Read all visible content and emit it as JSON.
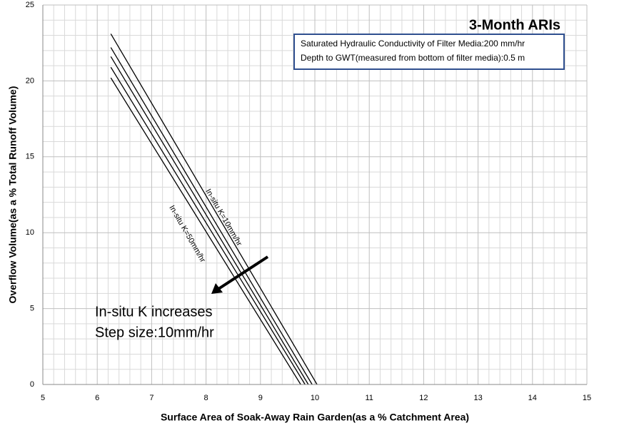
{
  "chart_data": {
    "type": "line",
    "title": "3-Month ARIs",
    "x_label": "Surface Area of Soak-Away Rain Garden(as a %  Catchment Area)",
    "y_label": "Overflow Volume(as a % Total Runoff Volume)",
    "info_box": [
      "Saturated Hydraulic Conductivity of Filter Media:200 mm/hr",
      "Depth to GWT(measured from bottom of filter media):0.5 m"
    ],
    "annotations": [
      "In-situ K=10mm/hr",
      "In-situ K=50mm/hr",
      "In-situ K increases",
      "Step size:10mm/hr"
    ],
    "color": "#000000",
    "series": [
      {
        "x": [
          6.25,
          10.04
        ],
        "values": [
          23.1,
          0
        ]
      },
      {
        "x": [
          6.25,
          9.95
        ],
        "values": [
          22.2,
          0
        ]
      },
      {
        "x": [
          6.25,
          9.88
        ],
        "values": [
          21.6,
          0
        ]
      },
      {
        "x": [
          6.25,
          9.82
        ],
        "values": [
          20.9,
          0
        ]
      },
      {
        "x": [
          6.25,
          9.74
        ],
        "values": [
          20.2,
          0
        ]
      }
    ],
    "xlim": [
      5,
      15
    ],
    "xticks": [
      5,
      6,
      7,
      8,
      9,
      10,
      11,
      12,
      13,
      14,
      15
    ],
    "ylim": [
      0,
      25
    ],
    "yticks": [
      0,
      5,
      10,
      15,
      20,
      25
    ],
    "grid": true
  }
}
